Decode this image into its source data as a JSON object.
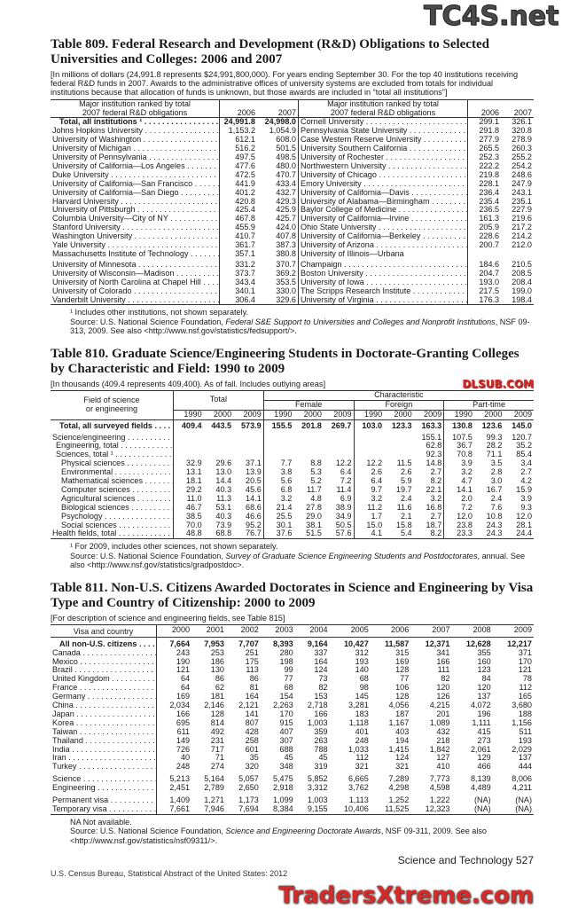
{
  "watermarks": {
    "top": "TC4S.net",
    "middle": "DLSUB.COM",
    "bottom": "TradersXtreme.com"
  },
  "colors": {
    "watermark_red": "#d42a2a",
    "watermark_dark": "#5a1e1e",
    "rule": "#333333"
  },
  "t809": {
    "title": "Table 809. Federal Research and Development (R&D) Obligations to Selected Universities and Colleges: 2006 and 2007",
    "note": "[In millions of dollars (24,991.8 represents $24,991,800,000). For years ending September 30. For the top 40 institutions receiving federal R&D funds in 2007. Awards to the administrative offices of university systems are excluded from totals for individual institutions because that allocation of funds is unknown, but those awards are included in “total all institutions”]",
    "header": {
      "label_line1": "Major institution ranked by total",
      "label_line2": "2007 federal R&D obligations",
      "y1": "2006",
      "y2": "2007"
    },
    "rows": [
      {
        "left": [
          "Total, all institutions ¹",
          "24,991.8",
          "24,998.0"
        ],
        "right": [
          "Cornell University",
          "299.1",
          "326.1"
        ]
      },
      {
        "left": [
          "Johns Hopkins University",
          "1,153.2",
          "1,054.9"
        ],
        "right": [
          "Pennsylvania State University",
          "291.8",
          "320.8"
        ]
      },
      {
        "left": [
          "University of Washington",
          "612.1",
          "608.0"
        ],
        "right": [
          "Case Western Reserve University",
          "277.9",
          "278.9"
        ]
      },
      {
        "left": [
          "University of Michigan",
          "516.2",
          "501.5"
        ],
        "right": [
          "University Southern California",
          "265.5",
          "260.3"
        ]
      },
      {
        "left": [
          "University of Pennsylvania",
          "497.5",
          "498.5"
        ],
        "right": [
          "University of Rochester",
          "252.3",
          "255.2"
        ]
      },
      {
        "left": [
          "University of California—Los Angeles",
          "477.6",
          "480.0"
        ],
        "right": [
          "Northwestern University",
          "222.2",
          "254.2"
        ]
      },
      {
        "left": [
          "Duke University",
          "472.5",
          "470.7"
        ],
        "right": [
          "University of Chicago",
          "219.8",
          "248.6"
        ]
      },
      {
        "left": [
          "University of California—San Francisco",
          "441.9",
          "433.4"
        ],
        "right": [
          "Emory University",
          "228.1",
          "247.9"
        ]
      },
      {
        "left": [
          "University of California—San Diego",
          "401.2",
          "432.7"
        ],
        "right": [
          "University of California—Davis",
          "236.4",
          "243.1"
        ]
      },
      {
        "left": [
          "Harvard University",
          "420.8",
          "429.3"
        ],
        "right": [
          "University of Alabama—Birmingham",
          "235.4",
          "235.1"
        ]
      },
      {
        "left": [
          "University of Pittsburgh",
          "425.4",
          "425.9"
        ],
        "right": [
          "Baylor College of Medicine",
          "236.5",
          "227.9"
        ]
      },
      {
        "left": [
          "Columbia University—City of NY",
          "467.8",
          "425.7"
        ],
        "right": [
          "University of California—Irvine",
          "161.3",
          "219.6"
        ]
      },
      {
        "left": [
          "Stanford University",
          "455.9",
          "424.0"
        ],
        "right": [
          "Ohio State University",
          "205.9",
          "217.2"
        ]
      },
      {
        "left": [
          "Washington University",
          "410.7",
          "407.8"
        ],
        "right": [
          "University of California—Berkeley",
          "228.6",
          "214.2"
        ]
      },
      {
        "left": [
          "Yale University",
          "361.7",
          "387.3"
        ],
        "right": [
          "University of Arizona",
          "200.7",
          "212.0"
        ]
      },
      {
        "left": [
          "Massachusetts Institute of Technology",
          "357.1",
          "380.8"
        ],
        "right": [
          "University of Illinois—Urbana",
          "",
          ""
        ]
      },
      {
        "left": [
          "University of Minnesota",
          "331.2",
          "370.7"
        ],
        "right": [
          "  Champaign",
          "184.6",
          "210.5"
        ]
      },
      {
        "left": [
          "University of Wisconsin—Madison",
          "373.7",
          "369.2"
        ],
        "right": [
          "Boston University",
          "204.7",
          "208.5"
        ]
      },
      {
        "left": [
          "University of North Carolina at Chapel Hill",
          "343.4",
          "353.5"
        ],
        "right": [
          "University of Iowa",
          "193.0",
          "208.4"
        ]
      },
      {
        "left": [
          "University of Colorado",
          "340.1",
          "330.0"
        ],
        "right": [
          "The Scripps Research Institute",
          "217.5",
          "199.0"
        ]
      },
      {
        "left": [
          "Vanderbilt University",
          "306.4",
          "329.6"
        ],
        "right": [
          "University of Virginia",
          "176.3",
          "198.4"
        ]
      }
    ],
    "footnote": "¹ Includes other institutions, not shown separately.",
    "source_prefix": "Source: U.S. National Science Foundation, ",
    "source_title": "Federal S&E Support to Universities and Colleges and Nonprofit Institutions",
    "source_suffix": ", NSF 09-313, 2009. See also <http://www.nsf.gov/statistics/fedsupport/>."
  },
  "t810": {
    "title": "Table 810. Graduate Science/Engineering Students in Doctorate-Granting Colleges by Characteristic and Field: 1990 to 2009",
    "note": "[In thousands (409.4 represents 409,400). As of fall. Includes outlying areas]",
    "header": {
      "field_line1": "Field of science",
      "field_line2": "or engineering",
      "total": "Total",
      "characteristic": "Characteristic",
      "female": "Female",
      "foreign": "Foreign",
      "part_time": "Part-time",
      "years": [
        "1990",
        "2000",
        "2009"
      ]
    },
    "rows": [
      {
        "label": "Total, all surveyed fields",
        "level": 0,
        "bold": true,
        "values": [
          "409.4",
          "443.5",
          "573.9",
          "155.5",
          "201.8",
          "269.7",
          "103.0",
          "123.3",
          "163.3",
          "130.8",
          "123.6",
          "145.0"
        ]
      },
      {
        "label": "Science/engineering",
        "level": 0,
        "values": [
          "",
          "",
          "",
          "",
          "",
          "",
          "",
          "",
          "155.1",
          "107.5",
          "99.3",
          "120.7"
        ]
      },
      {
        "label": "Engineering, total",
        "level": 1,
        "values": [
          "",
          "",
          "",
          "",
          "",
          "",
          "",
          "",
          "62.8",
          "36.7",
          "28.2",
          "35.2"
        ]
      },
      {
        "label": "Sciences, total ¹",
        "level": 1,
        "values": [
          "",
          "",
          "",
          "",
          "",
          "",
          "",
          "",
          "92.3",
          "70.8",
          "71.1",
          "85.4"
        ]
      },
      {
        "label": "Physical sciences",
        "level": 2,
        "values": [
          "32.9",
          "29.6",
          "37.1",
          "7.7",
          "8.8",
          "12.2",
          "12.2",
          "11.5",
          "14.8",
          "3.9",
          "3.5",
          "3.4"
        ]
      },
      {
        "label": "Environmental",
        "level": 2,
        "values": [
          "13.1",
          "13.0",
          "13.9",
          "3.8",
          "5.3",
          "6.4",
          "2.6",
          "2.6",
          "2.7",
          "3.2",
          "2.8",
          "2.7"
        ]
      },
      {
        "label": "Mathematical sciences",
        "level": 2,
        "values": [
          "18.1",
          "14.4",
          "20.5",
          "5.6",
          "5.2",
          "7.2",
          "6.4",
          "5.9",
          "8.2",
          "4.7",
          "3.0",
          "4.2"
        ]
      },
      {
        "label": "Computer sciences",
        "level": 2,
        "values": [
          "29.2",
          "40.3",
          "45.6",
          "6.8",
          "11.7",
          "11.4",
          "9.7",
          "19.7",
          "22.1",
          "14.1",
          "16.7",
          "15.9"
        ]
      },
      {
        "label": "Agricultural sciences",
        "level": 2,
        "values": [
          "11.0",
          "11.3",
          "14.1",
          "3.2",
          "4.8",
          "6.9",
          "3.2",
          "2.4",
          "3.2",
          "2.0",
          "2.4",
          "3.9"
        ]
      },
      {
        "label": "Biological sciences",
        "level": 2,
        "values": [
          "46.7",
          "53.1",
          "68.6",
          "21.4",
          "27.8",
          "38.9",
          "11.2",
          "11.6",
          "16.8",
          "7.2",
          "7.6",
          "9.3"
        ]
      },
      {
        "label": "Psychology",
        "level": 2,
        "values": [
          "38.5",
          "40.3",
          "46.6",
          "25.5",
          "29.0",
          "34.9",
          "1.7",
          "2.1",
          "2.7",
          "12.0",
          "10.8",
          "12.0"
        ]
      },
      {
        "label": "Social sciences",
        "level": 2,
        "values": [
          "70.0",
          "73.9",
          "95.2",
          "30.1",
          "38.1",
          "50.5",
          "15.0",
          "15.8",
          "18.7",
          "23.8",
          "24.3",
          "28.1"
        ]
      },
      {
        "label": "Health fields, total",
        "level": 0,
        "values": [
          "48.8",
          "68.8",
          "76.7",
          "37.6",
          "51.5",
          "57.6",
          "4.1",
          "5.4",
          "8.2",
          "23.3",
          "24.3",
          "24.4"
        ]
      }
    ],
    "footnote": "¹ For 2009, includes other sciences, not shown separately.",
    "source_prefix": "Source: U.S. National Science Foundation, ",
    "source_title": "Survey of Graduate Science Engineering Students and Postdoctorates",
    "source_suffix": ", annual. See also <http://www.nsf.gov/statistics/gradpostdoc>."
  },
  "t811": {
    "title": "Table 811. Non-U.S. Citizens Awarded Doctorates in Science and Engineering by Visa Type and Country of Citizenship: 2000 to 2009",
    "note": "[For description of science and engineering fields, see Table 815]",
    "header": {
      "label": "Visa and country",
      "years": [
        "2000",
        "2001",
        "2002",
        "2003",
        "2004",
        "2005",
        "2006",
        "2007",
        "2008",
        "2009"
      ]
    },
    "groups": [
      [
        {
          "label": "All non-U.S. citizens",
          "bold": true,
          "values": [
            "7,664",
            "7,953",
            "7,707",
            "8,393",
            "9,164",
            "10,427",
            "11,587",
            "12,371",
            "12,628",
            "12,217"
          ]
        },
        {
          "label": "Canada",
          "values": [
            "243",
            "253",
            "251",
            "280",
            "337",
            "312",
            "315",
            "341",
            "355",
            "371"
          ]
        },
        {
          "label": "Mexico",
          "values": [
            "190",
            "186",
            "175",
            "198",
            "164",
            "193",
            "169",
            "166",
            "160",
            "170"
          ]
        },
        {
          "label": "Brazil",
          "values": [
            "121",
            "130",
            "113",
            "99",
            "124",
            "140",
            "128",
            "111",
            "123",
            "121"
          ]
        },
        {
          "label": "United Kingdom",
          "values": [
            "64",
            "86",
            "86",
            "77",
            "73",
            "68",
            "77",
            "82",
            "84",
            "78"
          ]
        },
        {
          "label": "France",
          "values": [
            "64",
            "62",
            "81",
            "68",
            "82",
            "98",
            "106",
            "120",
            "120",
            "112"
          ]
        },
        {
          "label": "Germany",
          "values": [
            "169",
            "181",
            "164",
            "154",
            "153",
            "145",
            "128",
            "126",
            "137",
            "165"
          ]
        },
        {
          "label": "China",
          "values": [
            "2,034",
            "2,146",
            "2,121",
            "2,263",
            "2,718",
            "3,281",
            "4,056",
            "4,215",
            "4,072",
            "3,680"
          ]
        },
        {
          "label": "Japan",
          "values": [
            "166",
            "128",
            "141",
            "170",
            "166",
            "183",
            "187",
            "201",
            "196",
            "188"
          ]
        },
        {
          "label": "Korea",
          "values": [
            "695",
            "814",
            "807",
            "915",
            "1,003",
            "1,118",
            "1,167",
            "1,089",
            "1,111",
            "1,156"
          ]
        },
        {
          "label": "Taiwan",
          "values": [
            "611",
            "492",
            "428",
            "407",
            "359",
            "401",
            "403",
            "432",
            "415",
            "511"
          ]
        },
        {
          "label": "Thailand",
          "values": [
            "149",
            "231",
            "258",
            "307",
            "263",
            "248",
            "194",
            "218",
            "273",
            "193"
          ]
        },
        {
          "label": "India",
          "values": [
            "726",
            "717",
            "601",
            "688",
            "788",
            "1,033",
            "1,415",
            "1,842",
            "2,061",
            "2,029"
          ]
        },
        {
          "label": "Iran",
          "values": [
            "40",
            "71",
            "35",
            "45",
            "45",
            "112",
            "124",
            "127",
            "129",
            "137"
          ]
        },
        {
          "label": "Turkey",
          "values": [
            "248",
            "274",
            "320",
            "348",
            "319",
            "321",
            "321",
            "410",
            "466",
            "444"
          ]
        }
      ],
      [
        {
          "label": "Science",
          "values": [
            "5,213",
            "5,164",
            "5,057",
            "5,475",
            "5,852",
            "6,665",
            "7,289",
            "7,773",
            "8,139",
            "8,006"
          ]
        },
        {
          "label": "Engineering",
          "values": [
            "2,451",
            "2,789",
            "2,650",
            "2,918",
            "3,312",
            "3,762",
            "4,298",
            "4,598",
            "4,489",
            "4,211"
          ]
        }
      ],
      [
        {
          "label": "Permanent visa",
          "values": [
            "1,409",
            "1,271",
            "1,173",
            "1,099",
            "1,003",
            "1,113",
            "1,252",
            "1,222",
            "(NA)",
            "(NA)"
          ]
        },
        {
          "label": "Temporary visa",
          "values": [
            "7,661",
            "7,946",
            "7,694",
            "8,384",
            "9,155",
            "10,406",
            "11,525",
            "12,323",
            "(NA)",
            "(NA)"
          ]
        }
      ]
    ],
    "footnote": "NA Not available.",
    "source_prefix": "Source: U.S. National Science Foundation, ",
    "source_title": "Science and Engineering Doctorate Awards",
    "source_suffix": ", NSF 09-311, 2009. See also <http://www.nsf.gov/statistics/nsf09311/>."
  },
  "footer": {
    "left": "U.S. Census Bureau, Statistical Abstract of the United States: 2012",
    "right": "Science and Technology  527"
  }
}
